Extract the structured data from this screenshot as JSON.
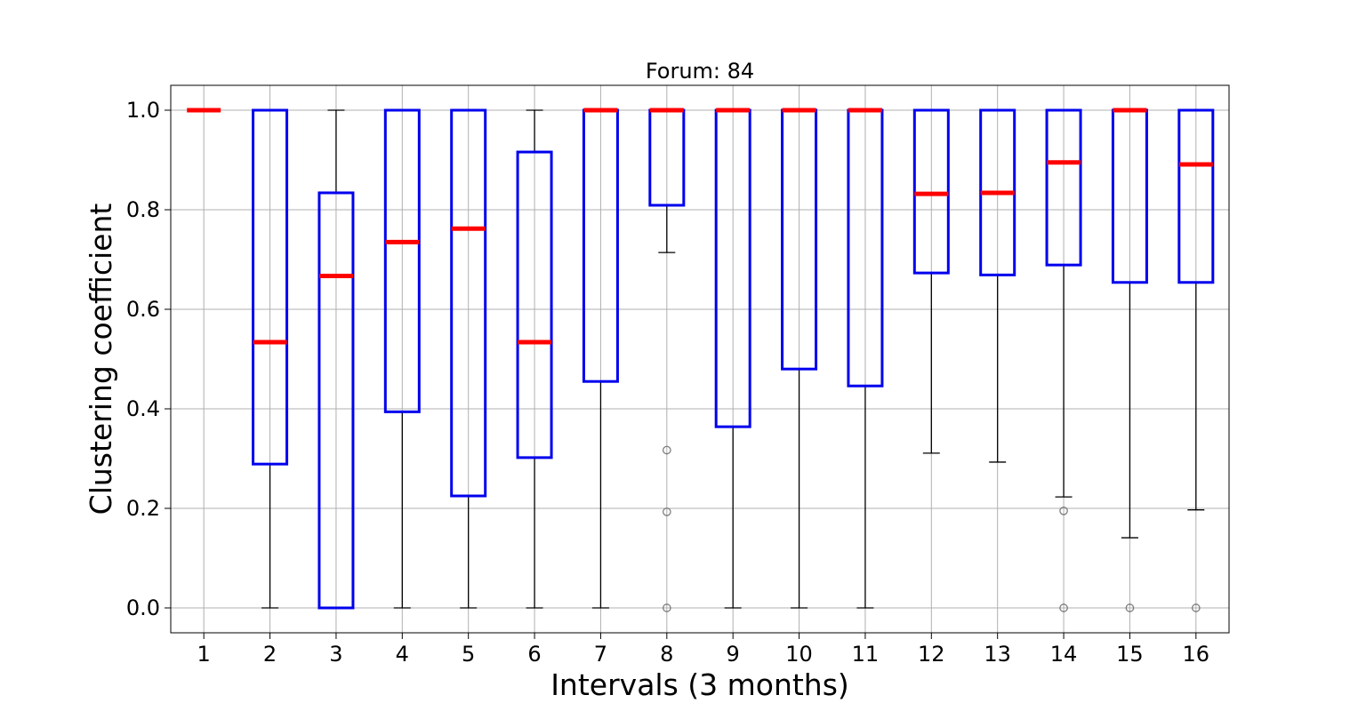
{
  "chart_data": {
    "type": "box",
    "title": "Forum: 84",
    "xlabel": "Intervals (3 months)",
    "ylabel": "Clustering coefficient",
    "ylim": [
      -0.05,
      1.05
    ],
    "yticks": [
      "0.0",
      "0.2",
      "0.4",
      "0.6",
      "0.8",
      "1.0"
    ],
    "grid": true,
    "colors": {
      "box": "#0000ee",
      "median": "#ff0000",
      "whisker": "#000000",
      "flier": "#555555",
      "grid": "#b0b0b0"
    },
    "categories": [
      "1",
      "2",
      "3",
      "4",
      "5",
      "6",
      "7",
      "8",
      "9",
      "10",
      "11",
      "12",
      "13",
      "14",
      "15",
      "16"
    ],
    "boxes": [
      {
        "category": "1",
        "whislo": 1.0,
        "q1": 1.0,
        "med": 1.0,
        "q3": 1.0,
        "whishi": 1.0,
        "fliers": []
      },
      {
        "category": "2",
        "whislo": 0.0,
        "q1": 0.289,
        "med": 0.534,
        "q3": 1.0,
        "whishi": 1.0,
        "fliers": []
      },
      {
        "category": "3",
        "whislo": 0.0,
        "q1": 0.0,
        "med": 0.667,
        "q3": 0.834,
        "whishi": 1.0,
        "fliers": []
      },
      {
        "category": "4",
        "whislo": 0.0,
        "q1": 0.394,
        "med": 0.735,
        "q3": 1.0,
        "whishi": 1.0,
        "fliers": []
      },
      {
        "category": "5",
        "whislo": 0.0,
        "q1": 0.225,
        "med": 0.762,
        "q3": 1.0,
        "whishi": 1.0,
        "fliers": []
      },
      {
        "category": "6",
        "whislo": 0.0,
        "q1": 0.302,
        "med": 0.534,
        "q3": 0.916,
        "whishi": 1.0,
        "fliers": []
      },
      {
        "category": "7",
        "whislo": 0.0,
        "q1": 0.455,
        "med": 1.0,
        "q3": 1.0,
        "whishi": 1.0,
        "fliers": []
      },
      {
        "category": "8",
        "whislo": 0.714,
        "q1": 0.809,
        "med": 1.0,
        "q3": 1.0,
        "whishi": 1.0,
        "fliers": [
          0.317,
          0.193,
          0.0
        ]
      },
      {
        "category": "9",
        "whislo": 0.0,
        "q1": 0.364,
        "med": 1.0,
        "q3": 1.0,
        "whishi": 1.0,
        "fliers": []
      },
      {
        "category": "10",
        "whislo": 0.0,
        "q1": 0.48,
        "med": 1.0,
        "q3": 1.0,
        "whishi": 1.0,
        "fliers": []
      },
      {
        "category": "11",
        "whislo": 0.0,
        "q1": 0.446,
        "med": 1.0,
        "q3": 1.0,
        "whishi": 1.0,
        "fliers": []
      },
      {
        "category": "12",
        "whislo": 0.311,
        "q1": 0.673,
        "med": 0.832,
        "q3": 1.0,
        "whishi": 1.0,
        "fliers": []
      },
      {
        "category": "13",
        "whislo": 0.293,
        "q1": 0.669,
        "med": 0.834,
        "q3": 1.0,
        "whishi": 1.0,
        "fliers": []
      },
      {
        "category": "14",
        "whislo": 0.223,
        "q1": 0.689,
        "med": 0.895,
        "q3": 1.0,
        "whishi": 1.0,
        "fliers": [
          0.195,
          0.0
        ]
      },
      {
        "category": "15",
        "whislo": 0.141,
        "q1": 0.654,
        "med": 1.0,
        "q3": 1.0,
        "whishi": 1.0,
        "fliers": [
          0.0
        ]
      },
      {
        "category": "16",
        "whislo": 0.197,
        "q1": 0.654,
        "med": 0.891,
        "q3": 1.0,
        "whishi": 1.0,
        "fliers": [
          0.0
        ]
      }
    ]
  }
}
